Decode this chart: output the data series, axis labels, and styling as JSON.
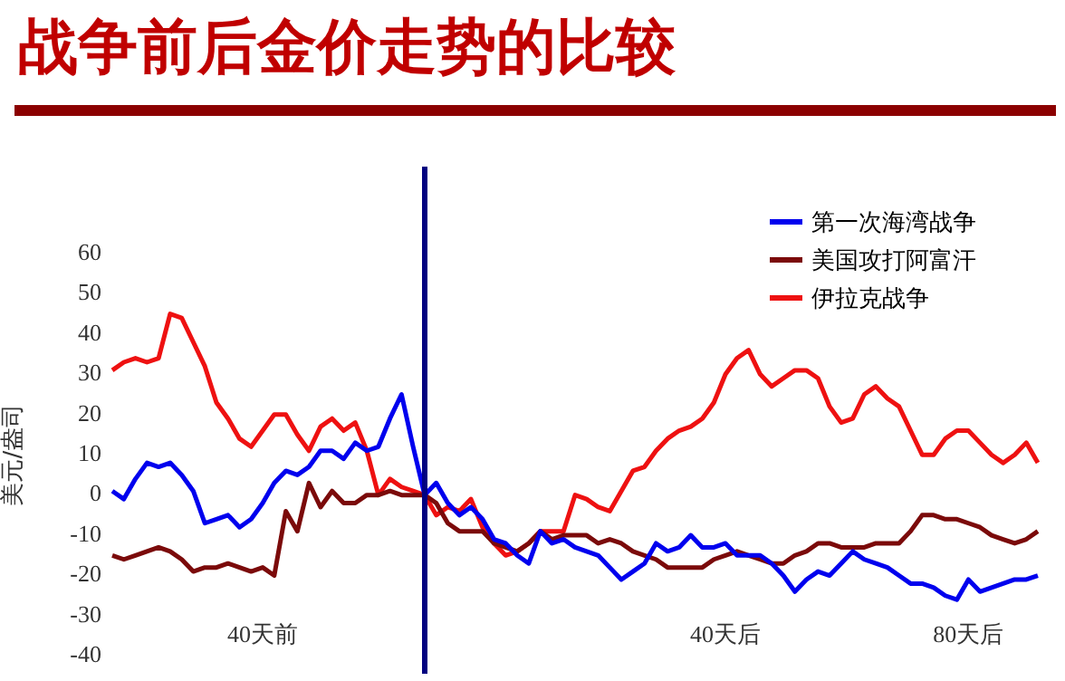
{
  "chart_data": {
    "type": "line",
    "title": "战争前后金价走势的比较",
    "ylabel": "美元/盎司",
    "categories": [
      null,
      null,
      null,
      null,
      null,
      null,
      null,
      null,
      null,
      null,
      null,
      null,
      null,
      "40天前",
      null,
      null,
      null,
      null,
      null,
      null,
      null,
      null,
      null,
      null,
      null,
      null,
      null,
      null,
      null,
      null,
      null,
      null,
      null,
      null,
      null,
      null,
      null,
      null,
      null,
      null,
      null,
      null,
      null,
      null,
      null,
      null,
      null,
      null,
      null,
      null,
      null,
      null,
      null,
      "40天后",
      null,
      null,
      null,
      null,
      null,
      null,
      null,
      null,
      null,
      null,
      null,
      null,
      null,
      null,
      null,
      null,
      null,
      null,
      null,
      null,
      "80天后",
      null,
      null,
      null,
      null,
      null,
      null
    ],
    "ylim": [
      -40,
      60
    ],
    "yticks": [
      -40,
      -30,
      -20,
      -10,
      0,
      10,
      20,
      30,
      40,
      50,
      60
    ],
    "grid": false,
    "legend": "top right",
    "marker": "none",
    "line_style": "solid",
    "series": [
      {
        "name": "第一次海湾战争",
        "color": "#0000ee",
        "values": [
          1,
          -1,
          4,
          8,
          7,
          8,
          5,
          1,
          -7,
          -6,
          -5,
          -8,
          -6,
          -2,
          3,
          6,
          5,
          7,
          11,
          11,
          9,
          13,
          11,
          12,
          19,
          25,
          12,
          0,
          3,
          -2,
          -5,
          -3,
          -6,
          -11,
          -12,
          -15,
          -17,
          -9,
          -12,
          -11,
          -13,
          -14,
          -15,
          -18,
          -21,
          -19,
          -17,
          -12,
          -14,
          -13,
          -10,
          -13,
          -13,
          -12,
          -15,
          -15,
          -15,
          -17,
          -20,
          -24,
          -21,
          -19,
          -20,
          -17,
          -14,
          -16,
          -17,
          -18,
          -20,
          -22,
          -22,
          -23,
          -25,
          -26,
          -21,
          -24,
          -23,
          -22,
          -21,
          -21,
          -20
        ]
      },
      {
        "name": "美国攻打阿富汗",
        "color": "#7b0a0a",
        "values": [
          -15,
          -16,
          -15,
          -14,
          -13,
          -14,
          -16,
          -19,
          -18,
          -18,
          -17,
          -18,
          -19,
          -18,
          -20,
          -4,
          -9,
          3,
          -3,
          1,
          -2,
          -2,
          0,
          0,
          1,
          0,
          0,
          0,
          -2,
          -7,
          -9,
          -9,
          -9,
          -12,
          -13,
          -14,
          -12,
          -9,
          -11,
          -10,
          -10,
          -10,
          -12,
          -11,
          -12,
          -14,
          -15,
          -16,
          -18,
          -18,
          -18,
          -18,
          -16,
          -15,
          -14,
          -15,
          -16,
          -17,
          -17,
          -15,
          -14,
          -12,
          -12,
          -13,
          -13,
          -13,
          -12,
          -12,
          -12,
          -9,
          -5,
          -5,
          -6,
          -6,
          -7,
          -8,
          -10,
          -11,
          -12,
          -11,
          -9
        ]
      },
      {
        "name": "伊拉克战争",
        "color": "#ee1111",
        "values": [
          31,
          33,
          34,
          33,
          34,
          45,
          44,
          38,
          32,
          23,
          19,
          14,
          12,
          16,
          20,
          20,
          15,
          11,
          17,
          19,
          16,
          18,
          11,
          0,
          4,
          2,
          1,
          0,
          -5,
          -3,
          -4,
          -1,
          -8,
          -12,
          -15,
          -14,
          -12,
          -9,
          -9,
          -9,
          0,
          -1,
          -3,
          -4,
          1,
          6,
          7,
          11,
          14,
          16,
          17,
          19,
          23,
          30,
          34,
          36,
          30,
          27,
          29,
          31,
          31,
          29,
          22,
          18,
          19,
          25,
          27,
          24,
          22,
          16,
          10,
          10,
          14,
          16,
          16,
          13,
          10,
          8,
          10,
          13,
          8
        ]
      }
    ]
  }
}
